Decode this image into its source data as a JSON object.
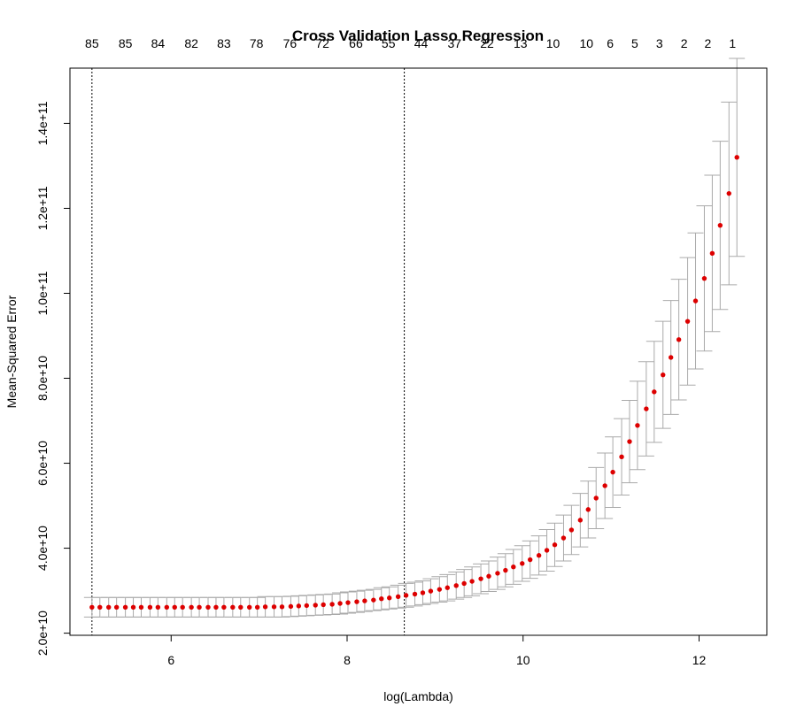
{
  "chart_data": {
    "type": "scatter",
    "title": "Cross Validation Lasso Regression",
    "xlabel": "log(Lambda)",
    "ylabel": "Mean-Squared Error",
    "xlim": [
      4.85,
      12.77
    ],
    "ylim": [
      19500000000,
      153000000000
    ],
    "x_ticks": [
      6,
      8,
      10,
      12
    ],
    "x_tick_labels": [
      "6",
      "8",
      "10",
      "12"
    ],
    "y_ticks": [
      20000000000,
      40000000000,
      60000000000,
      80000000000,
      100000000000,
      120000000000,
      140000000000
    ],
    "y_tick_labels": [
      "2.0e+10",
      "4.0e+10",
      "6.0e+10",
      "8.0e+10",
      "1.0e+11",
      "1.2e+11",
      "1.4e+11"
    ],
    "top_axis_labels": [
      {
        "x": 5.1,
        "label": "85"
      },
      {
        "x": 5.48,
        "label": "85"
      },
      {
        "x": 5.85,
        "label": "84"
      },
      {
        "x": 6.23,
        "label": "82"
      },
      {
        "x": 6.6,
        "label": "83"
      },
      {
        "x": 6.97,
        "label": "78"
      },
      {
        "x": 7.35,
        "label": "76"
      },
      {
        "x": 7.72,
        "label": "72"
      },
      {
        "x": 8.1,
        "label": "66"
      },
      {
        "x": 8.47,
        "label": "55"
      },
      {
        "x": 8.84,
        "label": "44"
      },
      {
        "x": 9.22,
        "label": "37"
      },
      {
        "x": 9.59,
        "label": "22"
      },
      {
        "x": 9.97,
        "label": "13"
      },
      {
        "x": 10.34,
        "label": "10"
      },
      {
        "x": 10.72,
        "label": "10"
      },
      {
        "x": 10.99,
        "label": "6"
      },
      {
        "x": 11.27,
        "label": "5"
      },
      {
        "x": 11.55,
        "label": "3"
      },
      {
        "x": 11.83,
        "label": "2"
      },
      {
        "x": 12.1,
        "label": "2"
      },
      {
        "x": 12.38,
        "label": "1"
      }
    ],
    "vlines": [
      5.1,
      8.65
    ],
    "point_color": "#dd0000",
    "errorbar_color": "#aaaaaa",
    "series": [
      {
        "x": [
          5.1,
          5.19,
          5.29,
          5.38,
          5.48,
          5.57,
          5.66,
          5.76,
          5.85,
          5.95,
          6.04,
          6.13,
          6.23,
          6.32,
          6.42,
          6.51,
          6.6,
          6.7,
          6.79,
          6.89,
          6.98,
          7.07,
          7.17,
          7.26,
          7.36,
          7.45,
          7.54,
          7.64,
          7.73,
          7.83,
          7.92,
          8.01,
          8.11,
          8.2,
          8.3,
          8.39,
          8.48,
          8.58,
          8.67,
          8.77,
          8.86,
          8.95,
          9.05,
          9.14,
          9.24,
          9.33,
          9.42,
          9.52,
          9.61,
          9.71,
          9.8,
          9.89,
          9.99,
          10.08,
          10.18,
          10.27,
          10.36,
          10.46,
          10.55,
          10.65,
          10.74,
          10.83,
          10.93,
          11.02,
          11.12,
          11.21,
          11.3,
          11.4,
          11.49,
          11.59,
          11.68,
          11.77,
          11.87,
          11.96,
          12.06,
          12.15,
          12.24,
          12.34,
          12.43
        ],
        "y": [
          26100000000,
          26100000000,
          26100000000,
          26100000000,
          26100000000,
          26100000000,
          26100000000,
          26100000000,
          26100000000,
          26100000000,
          26100000000,
          26100000000,
          26100000000,
          26100000000,
          26100000000,
          26100000000,
          26100000000,
          26100000000,
          26100000000,
          26100000000,
          26100000000,
          26200000000,
          26200000000,
          26200000000,
          26300000000,
          26400000000,
          26500000000,
          26600000000,
          26700000000,
          26800000000,
          27000000000,
          27200000000,
          27400000000,
          27600000000,
          27800000000,
          28100000000,
          28300000000,
          28600000000,
          28900000000,
          29200000000,
          29500000000,
          29900000000,
          30300000000,
          30700000000,
          31200000000,
          31700000000,
          32200000000,
          32800000000,
          33400000000,
          34100000000,
          34800000000,
          35600000000,
          36400000000,
          37300000000,
          38300000000,
          39500000000,
          40800000000,
          42400000000,
          44300000000,
          46600000000,
          49100000000,
          51800000000,
          54700000000,
          57900000000,
          61500000000,
          65100000000,
          68900000000,
          72800000000,
          76800000000,
          80800000000,
          84900000000,
          89100000000,
          93400000000,
          98200000000,
          103500000000,
          109400000000,
          116000000000,
          123500000000,
          132000000000
        ],
        "lower": [
          23800000000,
          23800000000,
          23800000000,
          23800000000,
          23800000000,
          23800000000,
          23800000000,
          23800000000,
          23800000000,
          23800000000,
          23800000000,
          23800000000,
          23800000000,
          23800000000,
          23800000000,
          23800000000,
          23800000000,
          23800000000,
          23800000000,
          23800000000,
          23800000000,
          23800000000,
          23800000000,
          23800000000,
          23900000000,
          24000000000,
          24100000000,
          24200000000,
          24300000000,
          24400000000,
          24500000000,
          24700000000,
          24900000000,
          25100000000,
          25300000000,
          25500000000,
          25700000000,
          25900000000,
          26100000000,
          26400000000,
          26700000000,
          27000000000,
          27300000000,
          27600000000,
          28000000000,
          28400000000,
          28800000000,
          29300000000,
          29800000000,
          30300000000,
          30900000000,
          31500000000,
          32200000000,
          32900000000,
          33700000000,
          34600000000,
          35700000000,
          37000000000,
          38500000000,
          40300000000,
          42400000000,
          44600000000,
          47000000000,
          49600000000,
          52500000000,
          55400000000,
          58500000000,
          61700000000,
          64900000000,
          68200000000,
          71500000000,
          74900000000,
          78400000000,
          82200000000,
          86400000000,
          91000000000,
          96200000000,
          102000000000,
          108700000000
        ],
        "upper": [
          28400000000,
          28400000000,
          28400000000,
          28400000000,
          28400000000,
          28400000000,
          28400000000,
          28400000000,
          28400000000,
          28400000000,
          28400000000,
          28400000000,
          28400000000,
          28400000000,
          28400000000,
          28400000000,
          28400000000,
          28400000000,
          28400000000,
          28400000000,
          28400000000,
          28600000000,
          28600000000,
          28600000000,
          28700000000,
          28800000000,
          28900000000,
          29000000000,
          29100000000,
          29200000000,
          29500000000,
          29700000000,
          29900000000,
          30100000000,
          30300000000,
          30700000000,
          30900000000,
          31300000000,
          31700000000,
          32000000000,
          32300000000,
          32800000000,
          33300000000,
          33800000000,
          34400000000,
          35000000000,
          35600000000,
          36300000000,
          37000000000,
          37900000000,
          38700000000,
          39700000000,
          40600000000,
          41700000000,
          42900000000,
          44400000000,
          45900000000,
          47800000000,
          50100000000,
          52900000000,
          55800000000,
          59000000000,
          62400000000,
          66200000000,
          70500000000,
          74800000000,
          79300000000,
          83900000000,
          88700000000,
          93400000000,
          98300000000,
          103300000000,
          108400000000,
          114200000000,
          120600000000,
          127800000000,
          135800000000,
          145000000000,
          155300000000
        ]
      }
    ]
  }
}
